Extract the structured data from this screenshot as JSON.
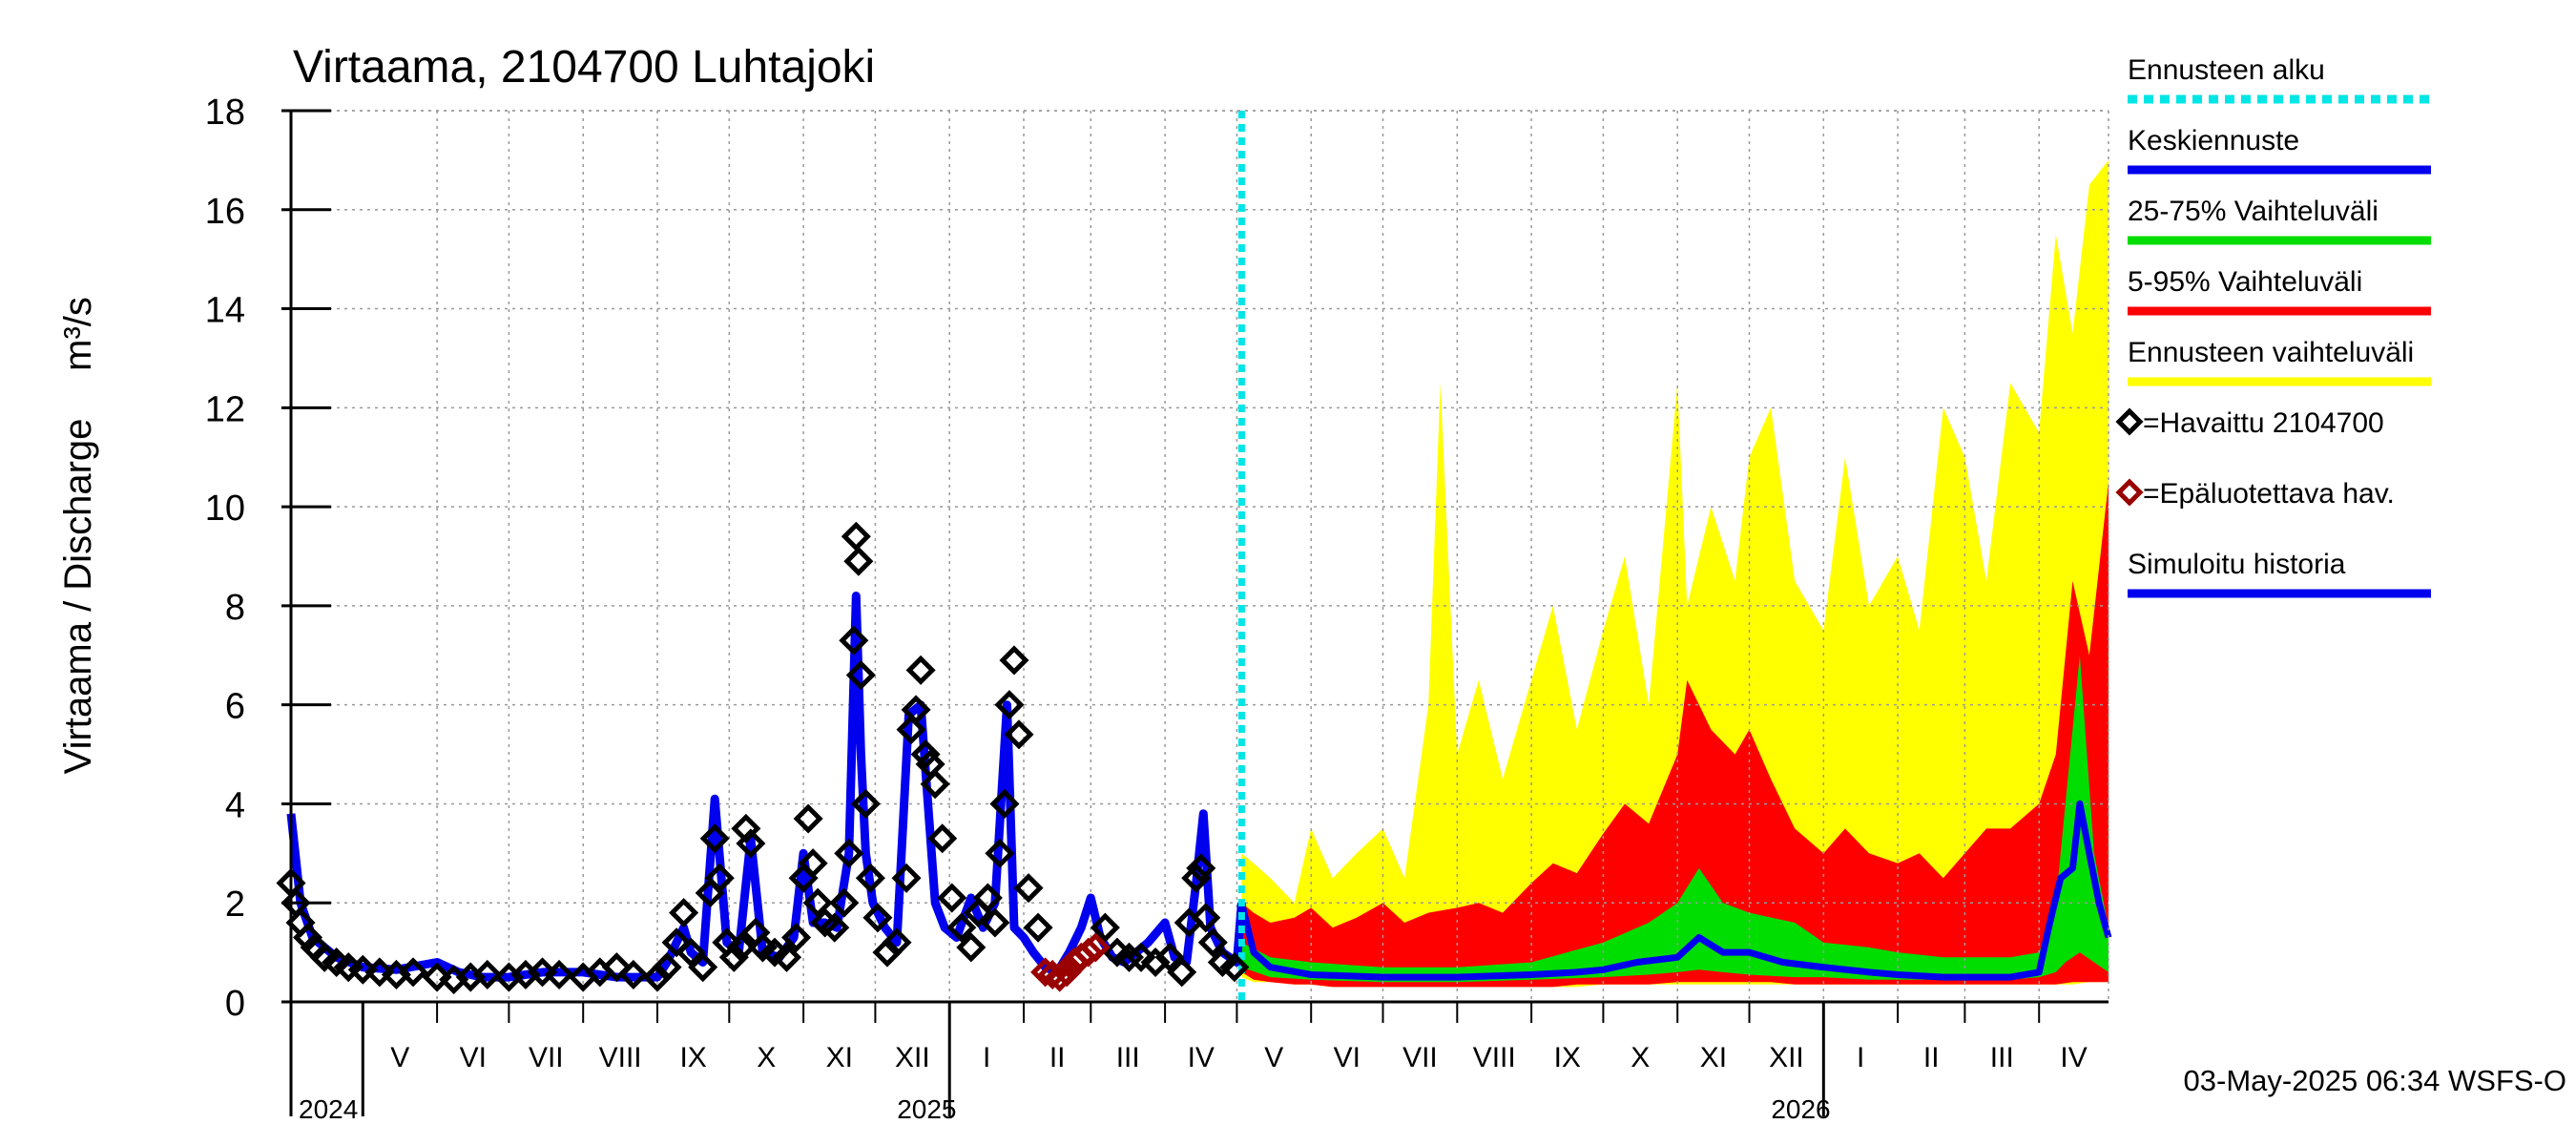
{
  "chart_data": {
    "type": "area",
    "title": "Virtaama, 2104700 Luhtajoki",
    "ylabel": "Virtaama / Discharge",
    "yunit": "m³/s",
    "ylim": [
      0,
      18
    ],
    "yticks": [
      0,
      2,
      4,
      6,
      8,
      10,
      12,
      14,
      16,
      18
    ],
    "grid": true,
    "xlim": [
      "2024-04-01",
      "2026-04-30"
    ],
    "forecast_start": "2025-05-03",
    "months": [
      {
        "label": "V",
        "start": "2024-05-01",
        "end": "2024-06-01"
      },
      {
        "label": "VI",
        "start": "2024-06-01",
        "end": "2024-07-01"
      },
      {
        "label": "VII",
        "start": "2024-07-01",
        "end": "2024-08-01"
      },
      {
        "label": "VIII",
        "start": "2024-08-01",
        "end": "2024-09-01"
      },
      {
        "label": "IX",
        "start": "2024-09-01",
        "end": "2024-10-01"
      },
      {
        "label": "X",
        "start": "2024-10-01",
        "end": "2024-11-01"
      },
      {
        "label": "XI",
        "start": "2024-11-01",
        "end": "2024-12-01"
      },
      {
        "label": "XII",
        "start": "2024-12-01",
        "end": "2025-01-01"
      },
      {
        "label": "I",
        "start": "2025-01-01",
        "end": "2025-02-01"
      },
      {
        "label": "II",
        "start": "2025-02-01",
        "end": "2025-03-01"
      },
      {
        "label": "III",
        "start": "2025-03-01",
        "end": "2025-04-01"
      },
      {
        "label": "IV",
        "start": "2025-04-01",
        "end": "2025-05-01"
      },
      {
        "label": "V",
        "start": "2025-05-01",
        "end": "2025-06-01"
      },
      {
        "label": "VI",
        "start": "2025-06-01",
        "end": "2025-07-01"
      },
      {
        "label": "VII",
        "start": "2025-07-01",
        "end": "2025-08-01"
      },
      {
        "label": "VIII",
        "start": "2025-08-01",
        "end": "2025-09-01"
      },
      {
        "label": "IX",
        "start": "2025-09-01",
        "end": "2025-10-01"
      },
      {
        "label": "X",
        "start": "2025-10-01",
        "end": "2025-11-01"
      },
      {
        "label": "XI",
        "start": "2025-11-01",
        "end": "2025-12-01"
      },
      {
        "label": "XII",
        "start": "2025-12-01",
        "end": "2026-01-01"
      },
      {
        "label": "I",
        "start": "2026-01-01",
        "end": "2026-02-01"
      },
      {
        "label": "II",
        "start": "2026-02-01",
        "end": "2026-03-01"
      },
      {
        "label": "III",
        "start": "2026-03-01",
        "end": "2026-04-01"
      },
      {
        "label": "IV",
        "start": "2026-04-01",
        "end": "2026-04-30"
      }
    ],
    "years": [
      {
        "label": "2024",
        "date": "2024-05-01"
      },
      {
        "label": "2025",
        "date": "2025-01-01"
      },
      {
        "label": "2026",
        "date": "2026-01-01"
      }
    ],
    "legend": [
      {
        "label": "Ennusteen alku",
        "color": "#00e5e5",
        "style": "dotted"
      },
      {
        "label": "Keskiennuste",
        "color": "#0000ee",
        "style": "line"
      },
      {
        "label": "25-75% Vaihteluväli",
        "color": "#00dd00",
        "style": "line"
      },
      {
        "label": "5-95% Vaihteluväli",
        "color": "#ff0000",
        "style": "line"
      },
      {
        "label": "Ennusteen vaihteluväli",
        "color": "#ffff00",
        "style": "line"
      },
      {
        "label": "=Havaittu 2104700",
        "color": "#000000",
        "style": "diamond"
      },
      {
        "label": "=Epäluotettava hav.",
        "color": "#990000",
        "style": "diamond"
      },
      {
        "label": "Simuloitu historia",
        "color": "#0000ee",
        "style": "line"
      }
    ],
    "footer": "03-May-2025 06:34 WSFS-O",
    "colors": {
      "forecast_range": "#ffff00",
      "p5_95": "#ff0000",
      "p25_75": "#00dd00",
      "median": "#0000ee",
      "simulated": "#0000ee",
      "observed": "#000000",
      "unreliable": "#990000",
      "forecast_start": "#00e5e5",
      "grid": "#999999"
    },
    "series": [
      {
        "name": "Simuloitu historia",
        "x": [
          "2024-04-01",
          "2024-04-05",
          "2024-04-10",
          "2024-04-20",
          "2024-05-01",
          "2024-05-15",
          "2024-06-01",
          "2024-06-10",
          "2024-06-20",
          "2024-07-01",
          "2024-07-15",
          "2024-08-01",
          "2024-08-15",
          "2024-09-01",
          "2024-09-05",
          "2024-09-12",
          "2024-09-15",
          "2024-09-20",
          "2024-09-25",
          "2024-09-30",
          "2024-10-05",
          "2024-10-10",
          "2024-10-15",
          "2024-10-22",
          "2024-10-28",
          "2024-11-01",
          "2024-11-05",
          "2024-11-10",
          "2024-11-15",
          "2024-11-20",
          "2024-11-23",
          "2024-11-25",
          "2024-11-27",
          "2024-11-30",
          "2024-12-05",
          "2024-12-10",
          "2024-12-15",
          "2024-12-20",
          "2024-12-26",
          "2024-12-30",
          "2025-01-04",
          "2025-01-10",
          "2025-01-15",
          "2025-01-20",
          "2025-01-25",
          "2025-01-28",
          "2025-02-01",
          "2025-02-05",
          "2025-02-10",
          "2025-02-15",
          "2025-02-20",
          "2025-02-25",
          "2025-03-01",
          "2025-03-05",
          "2025-03-10",
          "2025-03-15",
          "2025-03-20",
          "2025-03-25",
          "2025-04-01",
          "2025-04-05",
          "2025-04-10",
          "2025-04-14",
          "2025-04-17",
          "2025-04-20",
          "2025-04-25",
          "2025-05-01",
          "2025-05-03"
        ],
        "values": [
          3.8,
          2.0,
          1.3,
          0.9,
          0.7,
          0.65,
          0.8,
          0.6,
          0.5,
          0.5,
          0.6,
          0.6,
          0.5,
          0.5,
          0.8,
          1.5,
          1.0,
          0.8,
          4.1,
          1.2,
          1.0,
          3.3,
          1.0,
          0.9,
          1.3,
          3.0,
          1.6,
          1.6,
          1.5,
          3.0,
          8.2,
          5.0,
          3.0,
          2.0,
          1.5,
          1.2,
          5.8,
          6.0,
          2.0,
          1.5,
          1.3,
          2.1,
          1.5,
          2.0,
          6.0,
          1.5,
          1.3,
          1.0,
          0.7,
          0.6,
          1.0,
          1.5,
          2.1,
          1.3,
          0.9,
          0.8,
          1.0,
          1.2,
          1.6,
          0.9,
          0.8,
          2.4,
          3.8,
          1.5,
          1.0,
          0.8,
          2.0
        ]
      },
      {
        "name": "=Havaittu 2104700",
        "x": [
          "2024-04-01",
          "2024-04-03",
          "2024-04-05",
          "2024-04-08",
          "2024-04-11",
          "2024-04-15",
          "2024-04-20",
          "2024-04-25",
          "2024-05-01",
          "2024-05-08",
          "2024-05-15",
          "2024-05-22",
          "2024-06-01",
          "2024-06-08",
          "2024-06-15",
          "2024-06-22",
          "2024-07-01",
          "2024-07-08",
          "2024-07-15",
          "2024-07-22",
          "2024-08-01",
          "2024-08-08",
          "2024-08-15",
          "2024-08-22",
          "2024-09-01",
          "2024-09-05",
          "2024-09-09",
          "2024-09-12",
          "2024-09-15",
          "2024-09-20",
          "2024-09-23",
          "2024-09-25",
          "2024-09-27",
          "2024-09-30",
          "2024-10-03",
          "2024-10-06",
          "2024-10-08",
          "2024-10-10",
          "2024-10-12",
          "2024-10-15",
          "2024-10-20",
          "2024-10-25",
          "2024-10-29",
          "2024-11-01",
          "2024-11-03",
          "2024-11-05",
          "2024-11-07",
          "2024-11-10",
          "2024-11-14",
          "2024-11-18",
          "2024-11-20",
          "2024-11-22",
          "2024-11-23",
          "2024-11-24",
          "2024-11-25",
          "2024-11-27",
          "2024-11-29",
          "2024-12-02",
          "2024-12-06",
          "2024-12-10",
          "2024-12-14",
          "2024-12-16",
          "2024-12-18",
          "2024-12-20",
          "2024-12-22",
          "2024-12-24",
          "2024-12-26",
          "2024-12-29",
          "2025-01-02",
          "2025-01-06",
          "2025-01-10",
          "2025-01-13",
          "2025-01-17",
          "2025-01-20",
          "2025-01-22",
          "2025-01-24",
          "2025-01-26",
          "2025-01-28",
          "2025-01-30",
          "2025-02-03",
          "2025-02-07",
          "2025-03-07",
          "2025-03-12",
          "2025-03-17",
          "2025-03-22",
          "2025-03-28",
          "2025-04-03",
          "2025-04-08",
          "2025-04-11",
          "2025-04-14",
          "2025-04-16",
          "2025-04-18",
          "2025-04-21",
          "2025-04-25",
          "2025-04-30"
        ],
        "values": [
          2.4,
          2.0,
          1.6,
          1.3,
          1.1,
          0.9,
          0.8,
          0.7,
          0.65,
          0.6,
          0.55,
          0.6,
          0.5,
          0.45,
          0.5,
          0.55,
          0.5,
          0.55,
          0.6,
          0.55,
          0.5,
          0.6,
          0.7,
          0.55,
          0.5,
          0.7,
          1.2,
          1.8,
          1.0,
          0.7,
          2.2,
          3.3,
          2.5,
          1.2,
          0.9,
          1.1,
          3.5,
          3.2,
          1.4,
          1.1,
          1.0,
          0.9,
          1.3,
          2.5,
          3.7,
          2.8,
          2.0,
          1.6,
          1.5,
          2.0,
          3.0,
          7.3,
          9.4,
          8.9,
          6.6,
          4.0,
          2.5,
          1.7,
          1.0,
          1.2,
          2.5,
          5.5,
          5.9,
          6.7,
          5.0,
          4.8,
          4.4,
          3.3,
          2.1,
          1.5,
          1.1,
          1.8,
          2.1,
          1.6,
          3.0,
          4.0,
          6.0,
          6.9,
          5.4,
          2.3,
          1.5,
          1.5,
          1.0,
          0.9,
          0.9,
          0.8,
          0.9,
          0.6,
          1.6,
          2.5,
          2.7,
          1.7,
          1.2,
          0.8,
          0.7
        ]
      },
      {
        "name": "=Epäluotettava hav.",
        "x": [
          "2025-02-10",
          "2025-02-13",
          "2025-02-16",
          "2025-02-19",
          "2025-02-22",
          "2025-02-25",
          "2025-02-28",
          "2025-03-03"
        ],
        "values": [
          0.6,
          0.55,
          0.5,
          0.6,
          0.8,
          0.9,
          1.0,
          1.1
        ]
      },
      {
        "name": "Ennusteen vaihteluväli",
        "x": [
          "2025-05-03",
          "2025-05-08",
          "2025-05-15",
          "2025-05-25",
          "2025-06-01",
          "2025-06-10",
          "2025-06-20",
          "2025-07-01",
          "2025-07-10",
          "2025-07-20",
          "2025-07-25",
          "2025-08-01",
          "2025-08-10",
          "2025-08-20",
          "2025-09-01",
          "2025-09-10",
          "2025-09-20",
          "2025-10-01",
          "2025-10-10",
          "2025-10-20",
          "2025-11-01",
          "2025-11-05",
          "2025-11-15",
          "2025-11-25",
          "2025-12-01",
          "2025-12-10",
          "2025-12-20",
          "2026-01-01",
          "2026-01-10",
          "2026-01-20",
          "2026-02-01",
          "2026-02-10",
          "2026-02-20",
          "2026-03-01",
          "2026-03-10",
          "2026-03-20",
          "2026-04-01",
          "2026-04-08",
          "2026-04-15",
          "2026-04-22",
          "2026-04-30"
        ],
        "upper": [
          3.0,
          2.8,
          2.5,
          2.0,
          3.5,
          2.5,
          3.0,
          3.5,
          2.5,
          6.0,
          12.5,
          5.0,
          6.5,
          4.5,
          6.5,
          8.0,
          5.5,
          7.5,
          9.0,
          6.0,
          12.5,
          8.0,
          10.0,
          8.5,
          11.0,
          12.0,
          8.5,
          7.5,
          11.0,
          8.0,
          9.0,
          7.5,
          12.0,
          11.0,
          8.5,
          12.5,
          11.5,
          15.5,
          13.5,
          16.5,
          17.0
        ],
        "lower": [
          0.5,
          0.4,
          0.4,
          0.35,
          0.35,
          0.3,
          0.3,
          0.3,
          0.3,
          0.3,
          0.3,
          0.3,
          0.3,
          0.3,
          0.3,
          0.3,
          0.3,
          0.35,
          0.35,
          0.35,
          0.35,
          0.35,
          0.35,
          0.35,
          0.35,
          0.35,
          0.35,
          0.35,
          0.35,
          0.35,
          0.35,
          0.35,
          0.35,
          0.35,
          0.35,
          0.35,
          0.35,
          0.35,
          0.35,
          0.4,
          0.4
        ]
      },
      {
        "name": "5-95% Vaihteluväli",
        "x": [
          "2025-05-03",
          "2025-05-08",
          "2025-05-15",
          "2025-05-25",
          "2025-06-01",
          "2025-06-10",
          "2025-06-20",
          "2025-07-01",
          "2025-07-10",
          "2025-07-20",
          "2025-08-01",
          "2025-08-10",
          "2025-08-20",
          "2025-09-01",
          "2025-09-10",
          "2025-09-20",
          "2025-10-01",
          "2025-10-10",
          "2025-10-20",
          "2025-11-01",
          "2025-11-05",
          "2025-11-15",
          "2025-11-25",
          "2025-12-01",
          "2025-12-10",
          "2025-12-20",
          "2026-01-01",
          "2026-01-10",
          "2026-01-20",
          "2026-02-01",
          "2026-02-10",
          "2026-02-20",
          "2026-03-01",
          "2026-03-10",
          "2026-03-20",
          "2026-04-01",
          "2026-04-08",
          "2026-04-15",
          "2026-04-22",
          "2026-04-30"
        ],
        "upper": [
          2.0,
          1.8,
          1.6,
          1.7,
          1.9,
          1.5,
          1.7,
          2.0,
          1.6,
          1.8,
          1.9,
          2.0,
          1.8,
          2.4,
          2.8,
          2.6,
          3.4,
          4.0,
          3.6,
          5.0,
          6.5,
          5.5,
          5.0,
          5.5,
          4.5,
          3.5,
          3.0,
          3.5,
          3.0,
          2.8,
          3.0,
          2.5,
          3.0,
          3.5,
          3.5,
          4.0,
          5.0,
          8.5,
          7.0,
          10.5
        ],
        "lower": [
          0.6,
          0.45,
          0.4,
          0.35,
          0.35,
          0.3,
          0.3,
          0.3,
          0.3,
          0.3,
          0.3,
          0.3,
          0.3,
          0.3,
          0.3,
          0.35,
          0.35,
          0.35,
          0.35,
          0.4,
          0.4,
          0.4,
          0.4,
          0.4,
          0.4,
          0.35,
          0.35,
          0.35,
          0.35,
          0.35,
          0.35,
          0.35,
          0.35,
          0.35,
          0.35,
          0.35,
          0.35,
          0.4,
          0.4,
          0.4
        ]
      },
      {
        "name": "25-75% Vaihteluväli",
        "x": [
          "2025-05-03",
          "2025-05-15",
          "2025-06-01",
          "2025-07-01",
          "2025-08-01",
          "2025-09-01",
          "2025-10-01",
          "2025-10-20",
          "2025-11-01",
          "2025-11-10",
          "2025-11-20",
          "2025-12-01",
          "2025-12-20",
          "2026-01-01",
          "2026-01-20",
          "2026-02-01",
          "2026-02-20",
          "2026-03-01",
          "2026-03-20",
          "2026-04-01",
          "2026-04-08",
          "2026-04-12",
          "2026-04-18",
          "2026-04-24",
          "2026-04-30"
        ],
        "upper": [
          1.2,
          0.9,
          0.8,
          0.7,
          0.7,
          0.8,
          1.2,
          1.6,
          2.0,
          2.7,
          2.0,
          1.8,
          1.6,
          1.2,
          1.1,
          1.0,
          0.9,
          0.9,
          0.9,
          1.0,
          2.0,
          4.0,
          7.0,
          3.0,
          1.5
        ],
        "lower": [
          0.7,
          0.5,
          0.45,
          0.4,
          0.4,
          0.45,
          0.5,
          0.55,
          0.6,
          0.65,
          0.6,
          0.55,
          0.5,
          0.5,
          0.45,
          0.45,
          0.45,
          0.45,
          0.45,
          0.5,
          0.6,
          0.8,
          1.0,
          0.8,
          0.6
        ]
      },
      {
        "name": "Keskiennuste",
        "x": [
          "2025-05-03",
          "2025-05-08",
          "2025-05-15",
          "2025-06-01",
          "2025-07-01",
          "2025-08-01",
          "2025-09-01",
          "2025-09-20",
          "2025-10-01",
          "2025-10-15",
          "2025-11-01",
          "2025-11-10",
          "2025-11-20",
          "2025-12-01",
          "2025-12-15",
          "2026-01-01",
          "2026-01-20",
          "2026-02-01",
          "2026-02-20",
          "2026-03-01",
          "2026-03-20",
          "2026-04-01",
          "2026-04-05",
          "2026-04-10",
          "2026-04-15",
          "2026-04-18",
          "2026-04-22",
          "2026-04-26",
          "2026-04-30"
        ],
        "values": [
          2.0,
          1.0,
          0.7,
          0.55,
          0.5,
          0.5,
          0.55,
          0.6,
          0.65,
          0.8,
          0.9,
          1.3,
          1.0,
          1.0,
          0.8,
          0.7,
          0.6,
          0.55,
          0.5,
          0.5,
          0.5,
          0.6,
          1.5,
          2.5,
          2.7,
          4.0,
          3.0,
          2.0,
          1.3
        ]
      }
    ]
  }
}
